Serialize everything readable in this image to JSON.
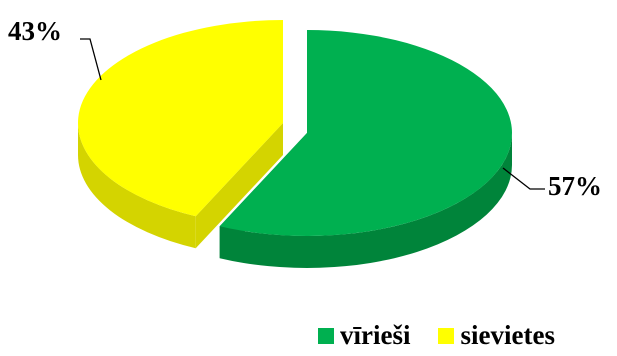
{
  "chart_data": {
    "type": "pie",
    "style": "3d-exploded",
    "legend_position": "bottom-right",
    "slices": [
      {
        "name": "vīrieši",
        "value": 57,
        "label": "57%",
        "color": "#00b050",
        "side_color": "#00843a"
      },
      {
        "name": "sievietes",
        "value": 43,
        "label": "43%",
        "color": "#ffff00",
        "side_color": "#d4d400"
      }
    ]
  }
}
